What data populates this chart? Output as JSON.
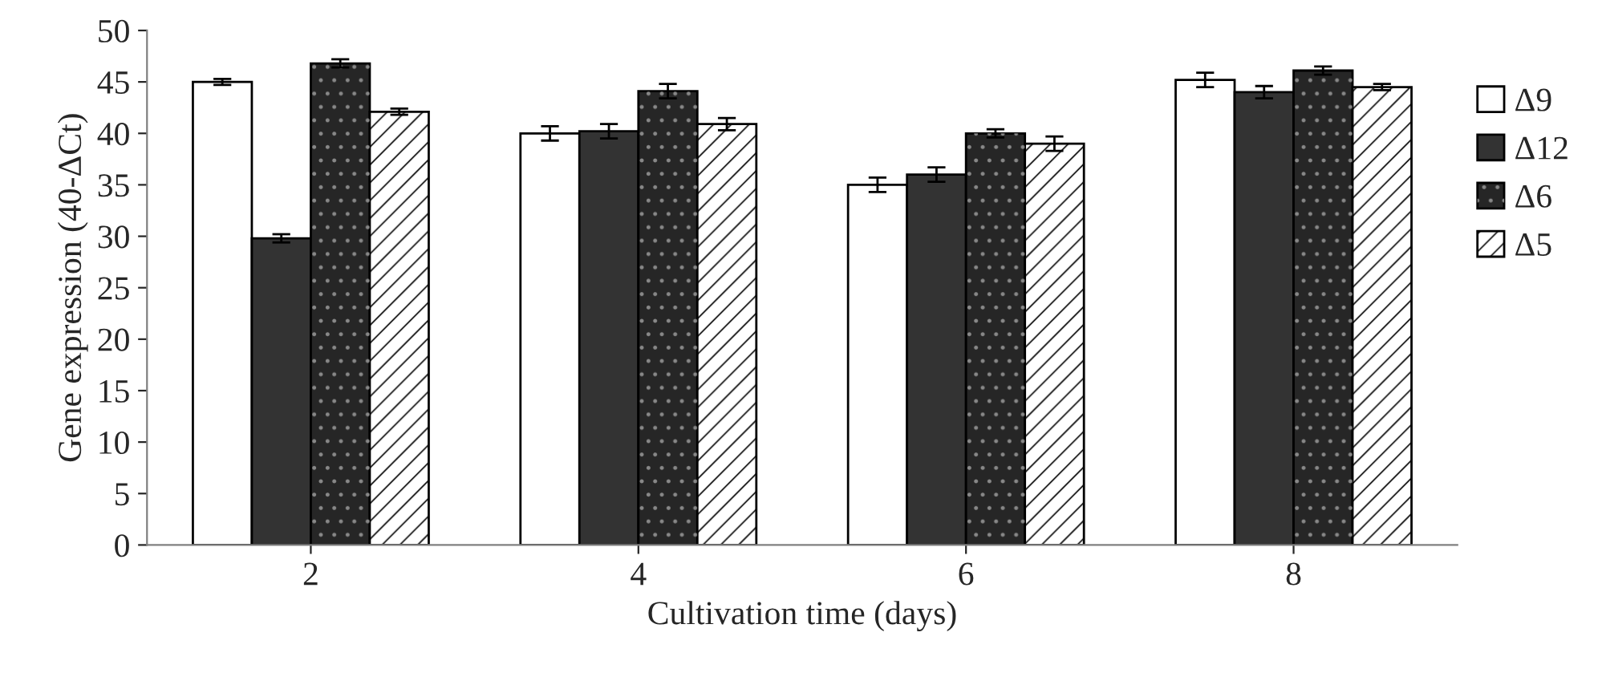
{
  "chart_data": {
    "type": "bar",
    "xlabel": "Cultivation time (days)",
    "ylabel": "Gene expression (40-ΔCt)",
    "categories": [
      "2",
      "4",
      "6",
      "8"
    ],
    "series": [
      {
        "name": "Δ9",
        "color": "#ffffff",
        "values": [
          45,
          40,
          35,
          45.2
        ],
        "errors": [
          0.3,
          0.7,
          0.7,
          0.7
        ]
      },
      {
        "name": "Δ12",
        "color": "#333333",
        "values": [
          29.8,
          40.2,
          36,
          44
        ],
        "errors": [
          0.4,
          0.7,
          0.7,
          0.6
        ]
      },
      {
        "name": "Δ6",
        "color": "#262626",
        "values": [
          46.8,
          44.1,
          40,
          46.1
        ],
        "errors": [
          0.4,
          0.7,
          0.4,
          0.4
        ]
      },
      {
        "name": "Δ5",
        "color": "#ffffff",
        "values": [
          42.1,
          40.9,
          39,
          44.5
        ],
        "errors": [
          0.3,
          0.6,
          0.7,
          0.3
        ]
      }
    ],
    "ylim": [
      0,
      50
    ],
    "yticks": [
      0,
      5,
      10,
      15,
      20,
      25,
      30,
      35,
      40,
      45,
      50
    ],
    "legend": "right",
    "grid": false
  }
}
